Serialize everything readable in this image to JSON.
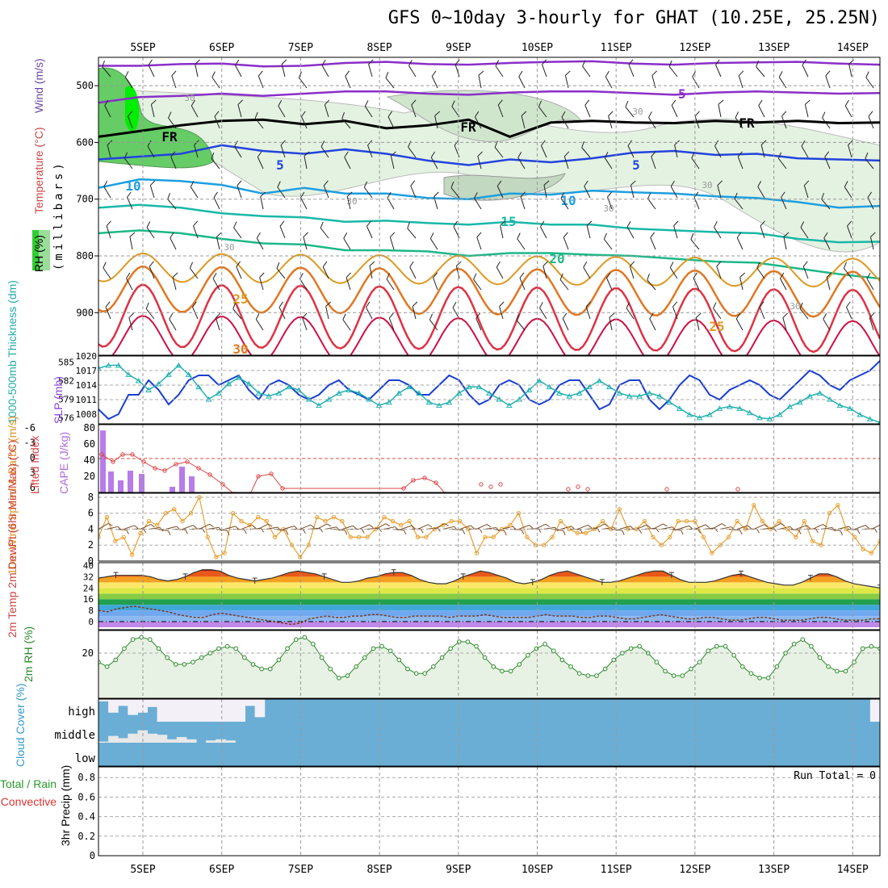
{
  "title": "GFS 0~10day 3-hourly for GHAT (10.25E, 25.25N)",
  "chart_data": {
    "type": "line",
    "x_dates": [
      "5SEP",
      "6SEP",
      "7SEP",
      "8SEP",
      "9SEP",
      "10SEP",
      "11SEP",
      "12SEP",
      "13SEP",
      "14SEP"
    ],
    "panels": {
      "upper_air": {
        "ylabel_units": "(millibars)",
        "legend": [
          "RH (%)",
          "Temperature (°C)",
          "Wind (m/s)"
        ],
        "yticks": [
          500,
          600,
          700,
          800,
          900
        ],
        "ylim": [
          450,
          975
        ],
        "contour_labels": [
          "-5",
          "FR",
          "5",
          "10",
          "15",
          "20",
          "25",
          "30"
        ],
        "rh_labels": [
          "30"
        ],
        "isotherms_pressure": {
          "m10": [
            465,
            465,
            462,
            461,
            466,
            465,
            460,
            458,
            462,
            463,
            460,
            458,
            457,
            461,
            463,
            460,
            459,
            458,
            461,
            463
          ],
          "m5": [
            530,
            520,
            518,
            514,
            518,
            514,
            510,
            510,
            514,
            516,
            512,
            510,
            510,
            513,
            516,
            512,
            510,
            512,
            514,
            513
          ],
          "fr": [
            590,
            580,
            570,
            562,
            560,
            568,
            562,
            575,
            570,
            560,
            590,
            565,
            562,
            565,
            566,
            562,
            565,
            562,
            566,
            565
          ],
          "p5": [
            630,
            625,
            620,
            605,
            615,
            620,
            612,
            620,
            632,
            640,
            630,
            635,
            628,
            618,
            615,
            622,
            620,
            628,
            630,
            632
          ],
          "p10": [
            680,
            665,
            668,
            675,
            690,
            680,
            690,
            690,
            698,
            700,
            690,
            692,
            685,
            688,
            690,
            695,
            698,
            705,
            715,
            712
          ],
          "p15": [
            715,
            710,
            715,
            725,
            730,
            732,
            740,
            738,
            742,
            745,
            740,
            745,
            745,
            752,
            755,
            758,
            760,
            770,
            776,
            775
          ],
          "p20": [
            760,
            755,
            760,
            770,
            778,
            780,
            790,
            790,
            792,
            800,
            795,
            795,
            798,
            800,
            805,
            810,
            812,
            822,
            832,
            840
          ]
        }
      },
      "thickness_slp": {
        "ylabel_left": "1000-500mb Thickness (dm)",
        "ylabel_right": "SLP (mb)",
        "yticks_left": [
          576,
          579,
          582,
          585
        ],
        "yticks_right": [
          1008,
          1011,
          1014,
          1017,
          1020
        ],
        "slp": [
          1009,
          1007,
          1008,
          1012,
          1012,
          1015,
          1013,
          1010,
          1012,
          1015,
          1016,
          1016,
          1014,
          1015,
          1016,
          1013,
          1011,
          1014,
          1015,
          1014,
          1012,
          1011,
          1012,
          1014,
          1015,
          1013,
          1012,
          1011,
          1013,
          1015,
          1015,
          1014,
          1012,
          1012,
          1014,
          1016,
          1015,
          1012,
          1010,
          1011,
          1014,
          1015,
          1014,
          1011,
          1010,
          1011,
          1014,
          1015,
          1015,
          1012,
          1009,
          1010,
          1014,
          1015,
          1015,
          1011,
          1009,
          1011,
          1014,
          1016,
          1015,
          1012,
          1011,
          1013,
          1014,
          1015,
          1014,
          1012,
          1011,
          1013,
          1015,
          1017,
          1016,
          1014,
          1013,
          1015,
          1016,
          1017,
          1019
        ],
        "thickness": [
          584,
          584.5,
          584.5,
          583,
          582,
          580.5,
          581.5,
          583,
          584.5,
          583,
          581,
          579,
          580,
          581.5,
          582.5,
          581.5,
          580,
          579.5,
          580,
          581,
          580.5,
          579,
          578,
          579,
          580,
          580.5,
          580,
          579,
          578,
          578.5,
          580,
          581,
          580,
          578.5,
          578,
          578.5,
          580,
          581,
          581,
          580,
          579,
          578,
          579,
          580.5,
          582,
          581,
          580,
          579.5,
          580,
          581,
          582,
          581,
          580,
          579.5,
          579.5,
          580,
          579.5,
          578.5,
          577.5,
          576.5,
          576,
          576.5,
          577.5,
          577.8,
          577.5,
          576.8,
          576,
          575.8,
          576.5,
          577.8,
          578.5,
          579.5,
          580,
          579,
          578,
          577.5,
          576.5,
          575.8,
          575.2
        ]
      },
      "cape_li": {
        "ylabel_left": "Lifted Index",
        "ylabel_right": "CAPE (J/kg)",
        "yticks_left": [
          "-6",
          "-3",
          "0",
          "3",
          "6"
        ],
        "yticks_right": [
          20,
          40,
          60,
          80
        ],
        "cape": [
          77,
          26,
          15,
          27,
          23,
          0,
          0,
          0,
          7,
          32,
          20,
          0
        ],
        "lifted_index": [
          1,
          2,
          1.5,
          0.5,
          0.8,
          1.5,
          2.5,
          3.2,
          3.5,
          2.5,
          1,
          0.5,
          0.8,
          2,
          3.5,
          5,
          6
        ]
      },
      "wind_10m": {
        "ylabel": "10m Wind Speed & Barbs (m/s)",
        "yticks": [
          0,
          2,
          4,
          6,
          8
        ],
        "speed": [
          3,
          5.5,
          2.5,
          3,
          0.8,
          3.5,
          5,
          4.5,
          6,
          6.5,
          5,
          6,
          8,
          3,
          0.5,
          1,
          6,
          5,
          4.5,
          5.5,
          5,
          3,
          4,
          2,
          0.5,
          2,
          5.5,
          5,
          5.5,
          5,
          3,
          3,
          3,
          4,
          5.5,
          5,
          4.5,
          5,
          3,
          3,
          4,
          4.5,
          5,
          5,
          4,
          1,
          3,
          3,
          4,
          4.5,
          6,
          3,
          2,
          2,
          3,
          5,
          4,
          3.5,
          3.5,
          4,
          5,
          4,
          6.5,
          4,
          4,
          5,
          3,
          2,
          3,
          5,
          5,
          5,
          3,
          1,
          2,
          3,
          5,
          4,
          7,
          5,
          4,
          5,
          4,
          3,
          5,
          2.5,
          2,
          6,
          7,
          4,
          3,
          1.5,
          1,
          2.5
        ],
        "wind_direction": "NE"
      },
      "temp_2m": {
        "ylabel": "2m Temp 2m DewPt (6hr Min/Max) (°C)",
        "yticks": [
          0,
          8,
          16,
          24,
          32,
          40
        ],
        "temp": [
          31,
          32,
          33,
          33,
          33,
          33,
          32,
          30,
          29,
          30,
          32,
          35,
          37,
          37,
          36,
          33,
          31,
          30,
          29,
          30,
          31,
          33,
          35,
          36,
          35,
          34,
          32,
          30,
          28,
          28,
          29,
          31,
          32,
          34,
          35,
          35,
          33,
          30,
          28,
          27,
          27,
          29,
          32,
          34,
          36,
          35,
          33,
          31,
          28,
          27,
          28,
          30,
          33,
          35,
          36,
          34,
          32,
          30,
          28,
          28,
          29,
          31,
          33,
          35,
          36,
          36,
          33,
          30,
          28,
          28,
          28,
          29,
          31,
          33,
          34,
          32,
          30,
          28,
          27,
          26,
          26,
          28,
          31,
          34,
          34,
          32,
          29,
          27,
          26,
          25,
          24
        ],
        "dewpoint": [
          8,
          7,
          9,
          10,
          11,
          10,
          9,
          8,
          7,
          5,
          4,
          3,
          3,
          5,
          6,
          5,
          4,
          3,
          2,
          1,
          0,
          -1,
          -2,
          -1,
          2,
          3,
          4,
          3,
          3,
          4,
          4,
          5,
          5,
          4,
          3,
          3,
          4,
          4,
          4,
          4,
          3,
          4,
          4,
          4,
          5,
          4,
          3,
          3,
          3,
          3,
          4,
          5,
          4,
          4,
          4,
          3,
          3,
          4,
          4,
          3,
          2,
          2,
          3,
          4,
          5,
          4,
          3,
          2,
          2,
          3,
          3,
          2,
          1,
          1,
          2,
          3,
          3,
          2,
          1,
          1,
          1,
          2,
          3,
          3,
          2,
          1,
          1,
          1,
          2,
          2
        ]
      },
      "rh_2m": {
        "ylabel": "2m RH (%)",
        "yticks": [
          20
        ],
        "rh": [
          16,
          14,
          17,
          22,
          26,
          27,
          26,
          22,
          18,
          15,
          15,
          16,
          18,
          20,
          22,
          23,
          22,
          18,
          15,
          13,
          13,
          17,
          22,
          26,
          27,
          24,
          18,
          13,
          9,
          10,
          14,
          18,
          22,
          23,
          21,
          17,
          13,
          11,
          11,
          14,
          18,
          22,
          25,
          25,
          23,
          18,
          14,
          12,
          12,
          15,
          19,
          22,
          24,
          21,
          17,
          14,
          11,
          10,
          10,
          13,
          17,
          20,
          22,
          23,
          20,
          16,
          12,
          10,
          10,
          13,
          16,
          21,
          23,
          23,
          19,
          14,
          11,
          9,
          9,
          14,
          20,
          24,
          26,
          23,
          18,
          14,
          12,
          12,
          16,
          22,
          23,
          22
        ],
        "fill_color": "#e8f2e4",
        "line_color": "#2a8a2a"
      },
      "cloud_cover": {
        "ylabel": "Cloud Cover (%)",
        "levels": [
          "high",
          "middle",
          "low"
        ],
        "background_color": "#6aaed6",
        "high": [
          10,
          60,
          30,
          70,
          60,
          35,
          100,
          100,
          100,
          100,
          100,
          100,
          100,
          100,
          100,
          30,
          80,
          0,
          0,
          0,
          0,
          0,
          0,
          0,
          0,
          0,
          0,
          0,
          0,
          0,
          0,
          0,
          0,
          0,
          0,
          0,
          0,
          0,
          0,
          0,
          0,
          0,
          0,
          0,
          0,
          0,
          0,
          0,
          0,
          0,
          0,
          0,
          0,
          0,
          0,
          0,
          0,
          0,
          0,
          0,
          0,
          0,
          0,
          0,
          0,
          0,
          0,
          0,
          0,
          0,
          0,
          0,
          0,
          0,
          0,
          0,
          0,
          0,
          0,
          100
        ],
        "middle": [
          5,
          30,
          20,
          40,
          55,
          40,
          35,
          15,
          25,
          15,
          0,
          10,
          15,
          10,
          0,
          0,
          0,
          0,
          0,
          0,
          0,
          0,
          0,
          0,
          0,
          0,
          0,
          0,
          0,
          0,
          0,
          0,
          0,
          0,
          0,
          0,
          0,
          0,
          0,
          0,
          0,
          0,
          0,
          0,
          0,
          0,
          0,
          0,
          0,
          0,
          0,
          0,
          0,
          0,
          0,
          0,
          0,
          0,
          0,
          0,
          0,
          0,
          0,
          0,
          0,
          0,
          0,
          0,
          0,
          0,
          0,
          0,
          0,
          0,
          0,
          0,
          0,
          0,
          0,
          0
        ]
      },
      "precip": {
        "ylabel_left": "Total / Rain",
        "ylabel_convective": "Convective",
        "ylabel": "3hr Precip (mm)",
        "yticks": [
          "0",
          "0.2",
          "0.4",
          "0.6",
          "0.8"
        ],
        "ylim": [
          0,
          0.9
        ],
        "run_total": "Run Total = 0"
      }
    }
  }
}
